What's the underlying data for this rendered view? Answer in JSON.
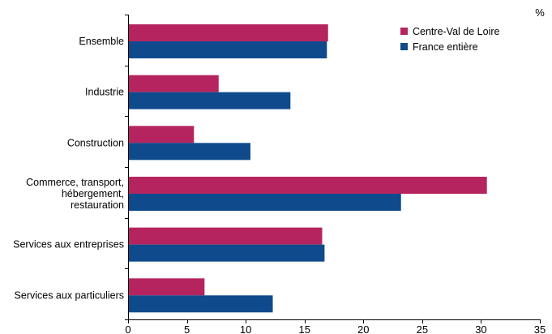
{
  "chart_data": {
    "type": "bar",
    "orientation": "horizontal",
    "title": "",
    "unit": "%",
    "categories": [
      [
        "Ensemble"
      ],
      [
        "Industrie"
      ],
      [
        "Construction"
      ],
      [
        "Commerce, transport,",
        "hébergement,",
        "restauration"
      ],
      [
        "Services aux entreprises"
      ],
      [
        "Services aux particuliers"
      ]
    ],
    "series": [
      {
        "name": "Centre-Val de Loire",
        "color": "#b5245f",
        "values": [
          17.0,
          7.7,
          5.6,
          30.5,
          16.5,
          6.5
        ]
      },
      {
        "name": "France entière",
        "color": "#0e4a8c",
        "values": [
          16.9,
          13.8,
          10.4,
          23.2,
          16.7,
          12.3
        ]
      }
    ],
    "xlim": [
      0,
      35
    ],
    "xticks": [
      0,
      5,
      10,
      15,
      20,
      25,
      30,
      35
    ],
    "grid": false,
    "legend_position": "top-right"
  }
}
